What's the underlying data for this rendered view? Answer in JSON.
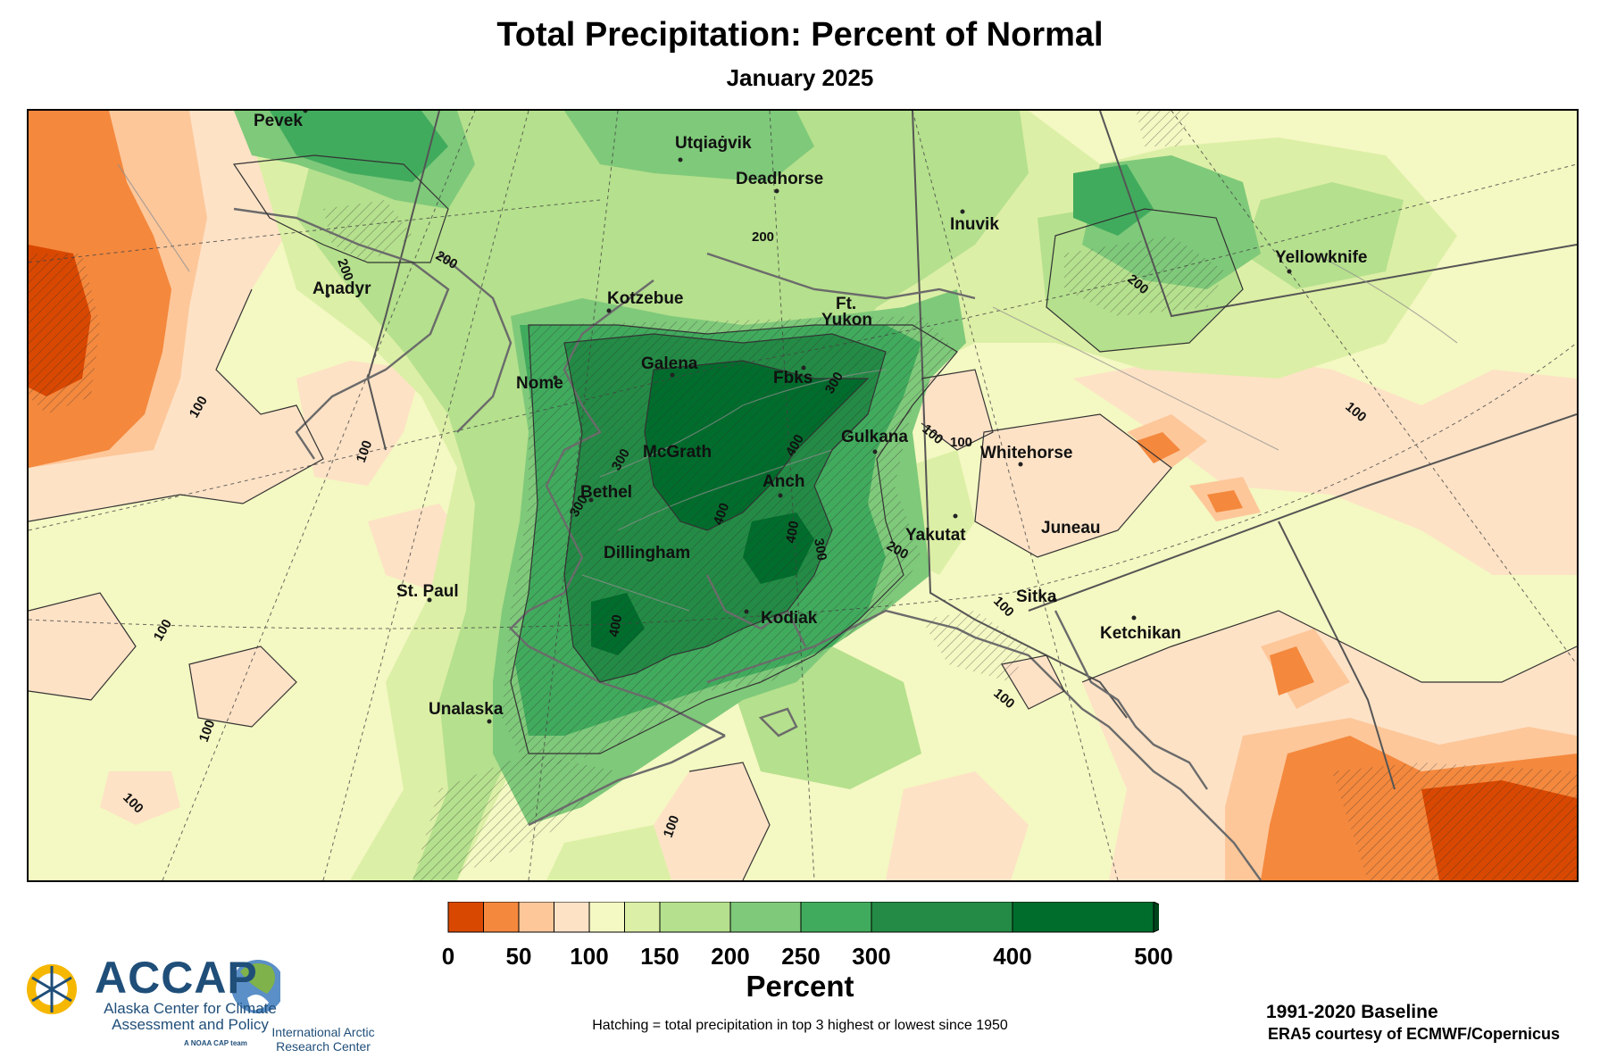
{
  "title": "Total Precipitation: Percent of Normal",
  "subtitle": "January 2025",
  "colorbar": {
    "label": "Percent",
    "ticks": [
      "0",
      "50",
      "100",
      "150",
      "200",
      "250",
      "300",
      "400",
      "500"
    ],
    "bins": [
      {
        "min": 0,
        "max": 25,
        "color": "#d94801"
      },
      {
        "min": 25,
        "max": 50,
        "color": "#f4883d"
      },
      {
        "min": 50,
        "max": 75,
        "color": "#fdc79a"
      },
      {
        "min": 75,
        "max": 100,
        "color": "#fde2c6"
      },
      {
        "min": 100,
        "max": 125,
        "color": "#f4f8c2"
      },
      {
        "min": 125,
        "max": 150,
        "color": "#dcefa6"
      },
      {
        "min": 150,
        "max": 200,
        "color": "#b5e08d"
      },
      {
        "min": 200,
        "max": 250,
        "color": "#7fc97a"
      },
      {
        "min": 250,
        "max": 300,
        "color": "#41ab5d"
      },
      {
        "min": 300,
        "max": 400,
        "color": "#238b45"
      },
      {
        "min": 400,
        "max": 500,
        "color": "#006d2c"
      }
    ],
    "extend_color": "#00441b"
  },
  "cities": [
    "Pevek",
    "Utqiaġvik",
    "Deadhorse",
    "Inuvik",
    "Yellowknife",
    "Anadyr",
    "Kotzebue",
    "Ft.",
    "Yukon",
    "Galena",
    "Nome",
    "Fbks",
    "Gulkana",
    "Whitehorse",
    "McGrath",
    "Bethel",
    "Anch",
    "Yakutat",
    "Juneau",
    "Dillingham",
    "St. Paul",
    "Sitka",
    "Kodiak",
    "Ketchikan",
    "Unalaska"
  ],
  "contour_labels": [
    "200",
    "200",
    "200",
    "200",
    "100",
    "100",
    "100",
    "100",
    "100",
    "100",
    "100",
    "100",
    "100",
    "100",
    "300",
    "300",
    "300",
    "400",
    "400",
    "400",
    "400",
    "300",
    "200",
    "100"
  ],
  "hatching_note": "Hatching = total precipitation in top 3 highest or lowest since 1950",
  "baseline": "1991-2020 Baseline",
  "credit": "ERA5 courtesy of ECMWF/Copernicus",
  "logos": {
    "accap_name": "ACCAP",
    "accap_full": "Alaska Center for Climate Assessment and Policy",
    "accap_tag": "A NOAA CAP team",
    "iarc_name": "International Arctic Research Center"
  }
}
